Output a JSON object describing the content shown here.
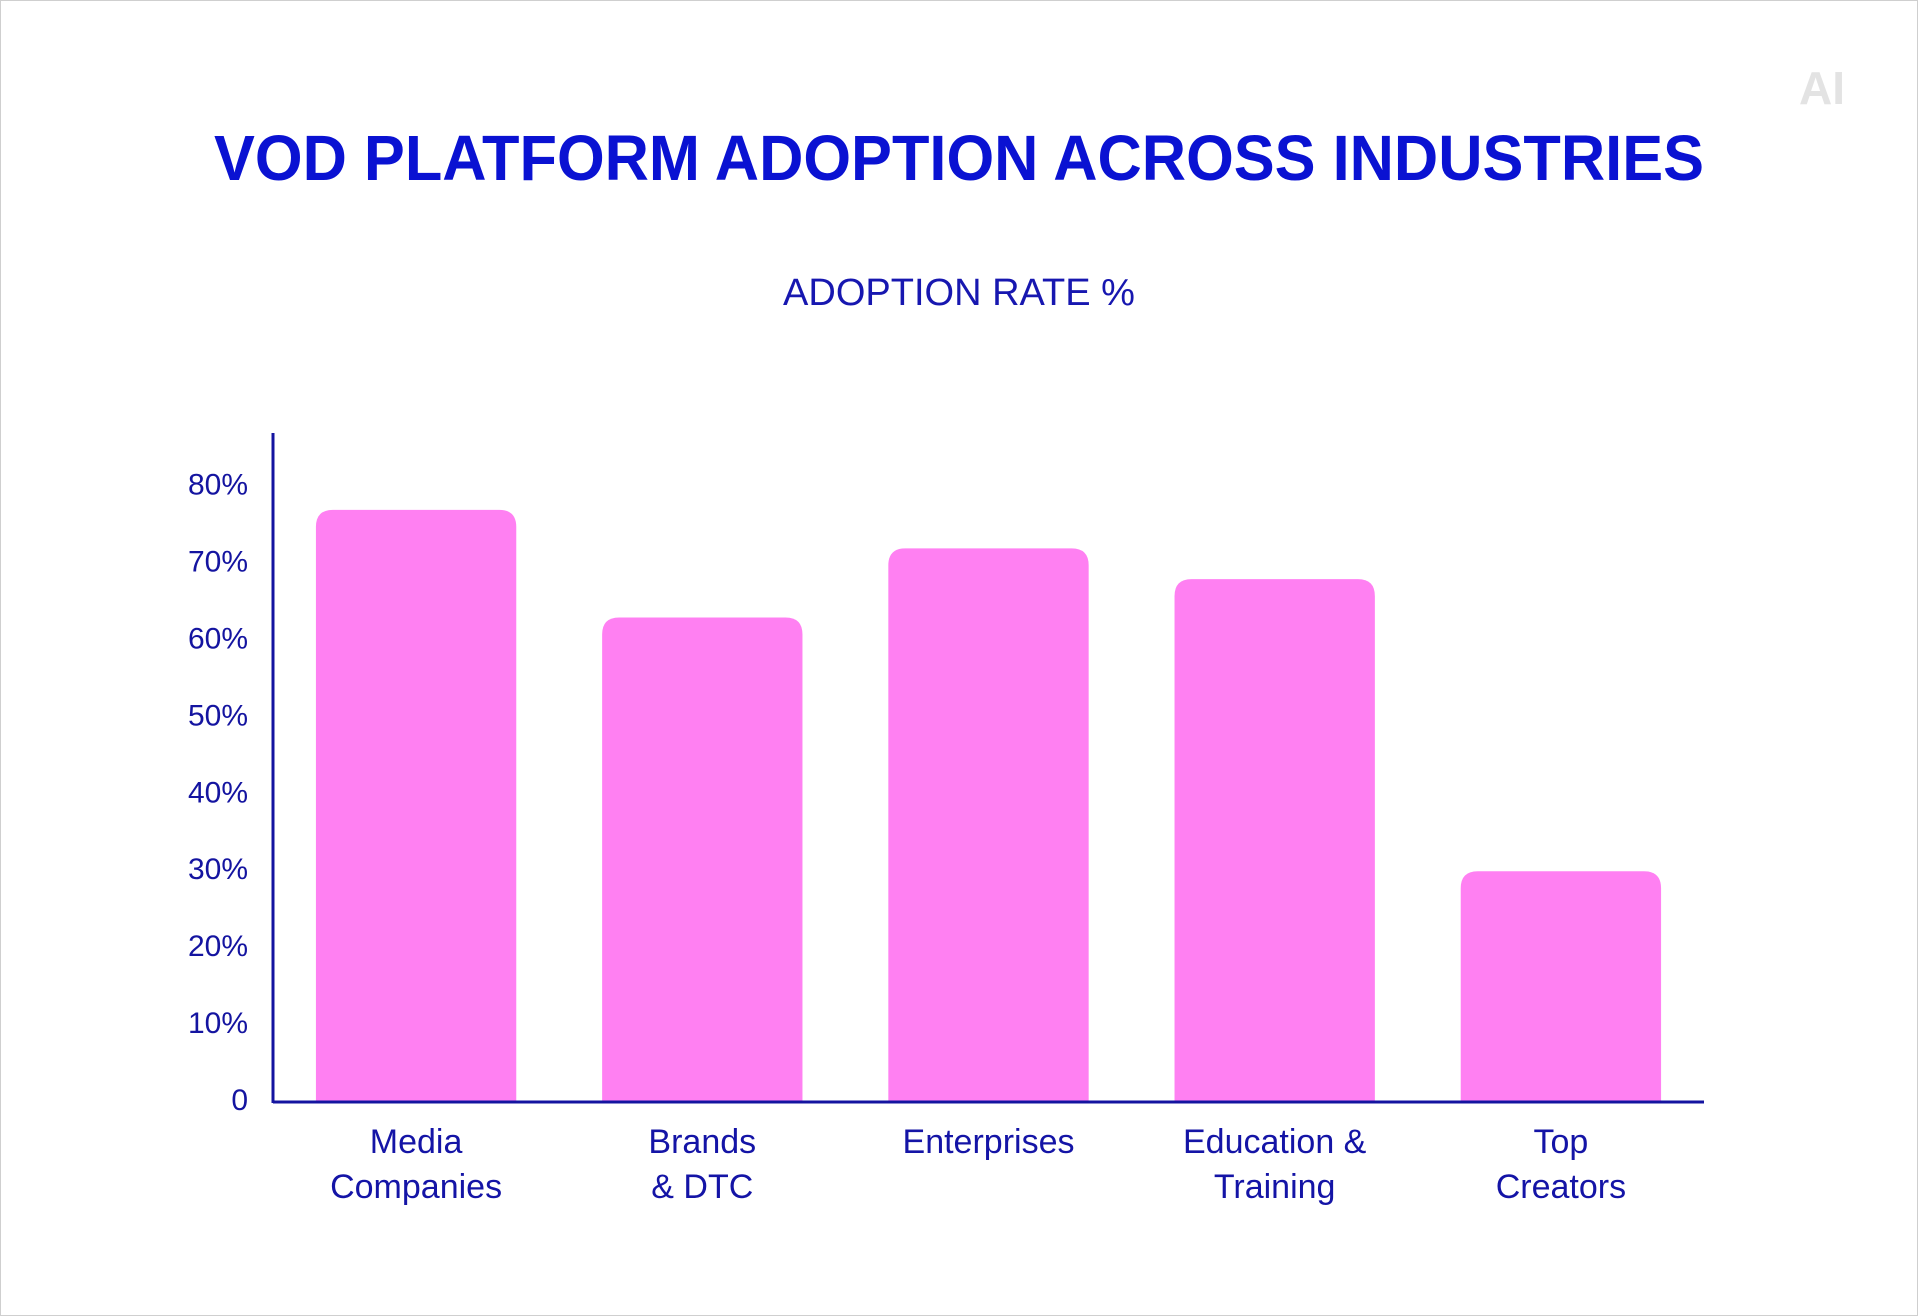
{
  "chart_data": {
    "type": "bar",
    "title": "VOD PLATFORM ADOPTION ACROSS INDUSTRIES",
    "subtitle": "ADOPTION RATE %",
    "watermark": "AI",
    "categories": [
      "Media\nCompanies",
      "Brands\n& DTC",
      "Enterprises",
      "Education &\nTraining",
      "Top\nCreators"
    ],
    "values": [
      77,
      63,
      72,
      68,
      30
    ],
    "color": "#ff80f2",
    "ylim": [
      0,
      87
    ],
    "yticks": [
      0,
      {
        "value": 10,
        "label": "10%"
      },
      {
        "value": 20,
        "label": "20%"
      },
      {
        "value": 30,
        "label": "30%"
      },
      {
        "value": 40,
        "label": "40%"
      },
      {
        "value": 50,
        "label": "50%"
      },
      {
        "value": 60,
        "label": "60%"
      },
      {
        "value": 70,
        "label": "70%"
      },
      {
        "value": 80,
        "label": "80%"
      }
    ],
    "grid": false
  }
}
